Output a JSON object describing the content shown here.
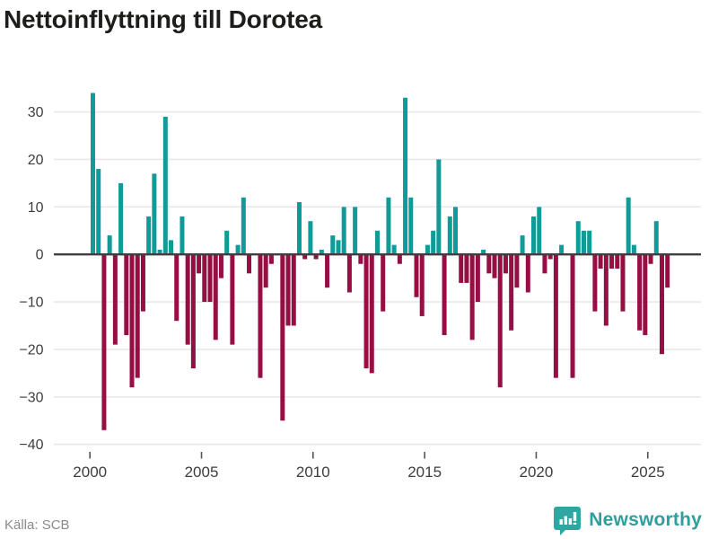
{
  "title": "Nettoinflyttning till Dorotea",
  "source": "Källa: SCB",
  "logo": {
    "text": "Newsworthy"
  },
  "colors": {
    "positive": "#0f9b97",
    "negative": "#970e45",
    "grid": "#e8e8e8",
    "zero_line": "#3f3f3f",
    "axis_text": "#3d3d3d",
    "title_text": "#1d1d1b",
    "source_text": "#8a8a8a",
    "logo_teal": "#2e9f9c"
  },
  "chart_data": {
    "type": "bar",
    "title": "Nettoinflyttning till Dorotea",
    "xlabel": "",
    "ylabel": "",
    "frequency": "quarterly",
    "x_start": "2000 Q1",
    "x_end": "2025 Q4",
    "ylim": [
      -42,
      37
    ],
    "grid": true,
    "y_ticks": [
      30,
      20,
      10,
      0,
      -10,
      -20,
      -30,
      -40
    ],
    "y_tick_labels": [
      "30",
      "20",
      "10",
      "0",
      "−10",
      "−20",
      "−30",
      "−40"
    ],
    "x_tick_labels": [
      "2000",
      "2005",
      "2010",
      "2015",
      "2020",
      "2025"
    ],
    "x_tick_quarter_indices": [
      0,
      20,
      40,
      60,
      80,
      100
    ],
    "series": [
      {
        "name": "Nettoinflyttning",
        "values": [
          34,
          18,
          -37,
          4,
          -19,
          15,
          -17,
          -28,
          -26,
          -12,
          8,
          17,
          1,
          29,
          3,
          -14,
          8,
          -19,
          -24,
          -4,
          -10,
          -10,
          -18,
          -5,
          5,
          -19,
          2,
          12,
          -4,
          0,
          -26,
          -7,
          -2,
          0,
          -35,
          -15,
          -15,
          11,
          -1,
          7,
          -1,
          1,
          -7,
          4,
          3,
          10,
          -8,
          10,
          -2,
          -24,
          -25,
          5,
          -12,
          12,
          2,
          -2,
          33,
          12,
          -9,
          -13,
          2,
          5,
          20,
          -17,
          8,
          10,
          -6,
          -6,
          -18,
          -10,
          1,
          -4,
          -5,
          -28,
          -4,
          -16,
          -7,
          4,
          -8,
          8,
          10,
          -4,
          -1,
          -26,
          2,
          0,
          -26,
          7,
          5,
          5,
          -12,
          -3,
          -15,
          -3,
          -3,
          -12,
          12,
          2,
          -16,
          -17,
          -2,
          7,
          -21,
          -7
        ]
      }
    ]
  }
}
